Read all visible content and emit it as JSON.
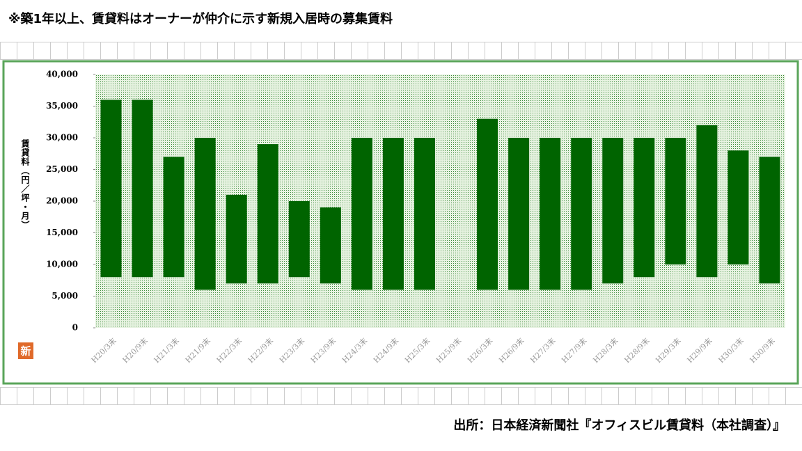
{
  "chart_data": {
    "type": "range-bar",
    "note": "※築1年以上、賃貸料はオーナーが仲介に示す新規入居時の募集賃料",
    "source": "出所：日本経済新聞社『オフィスビル賃貸料（本社調査）』",
    "logo": "新",
    "y_label": "賃貸料（円／坪・月）",
    "categories": [
      "H20/3末",
      "H20/9末",
      "H21/3末",
      "H21/9末",
      "H22/3末",
      "H22/9末",
      "H23/3末",
      "H23/9末",
      "H24/3末",
      "H24/9末",
      "H25/3末",
      "H25/9末",
      "H26/3末",
      "H26/9末",
      "H27/3末",
      "H27/9末",
      "H28/3末",
      "H28/9末",
      "H29/3末",
      "H29/9末",
      "H30/3末",
      "H30/9末"
    ],
    "low": [
      8000,
      8000,
      8000,
      6000,
      7000,
      7000,
      8000,
      7000,
      6000,
      6000,
      6000,
      null,
      6000,
      6000,
      6000,
      6000,
      7000,
      8000,
      10000,
      8000,
      10000,
      7000
    ],
    "high": [
      36000,
      36000,
      27000,
      30000,
      21000,
      29000,
      20000,
      19000,
      30000,
      30000,
      30000,
      null,
      33000,
      30000,
      30000,
      30000,
      30000,
      30000,
      30000,
      32000,
      28000,
      27000
    ],
    "color": "#006400",
    "ylim": [
      0,
      40000
    ],
    "yticks": [
      0,
      {
        "value": 5000,
        "label": "5,000"
      },
      {
        "value": 10000,
        "label": "10,000"
      },
      {
        "value": 15000,
        "label": "15,000"
      },
      {
        "value": 20000,
        "label": "20,000"
      },
      {
        "value": 25000,
        "label": "25,000"
      },
      {
        "value": 30000,
        "label": "30,000"
      },
      {
        "value": 35000,
        "label": "35,000"
      },
      {
        "value": 40000,
        "label": "40,000"
      }
    ],
    "grid": false
  }
}
